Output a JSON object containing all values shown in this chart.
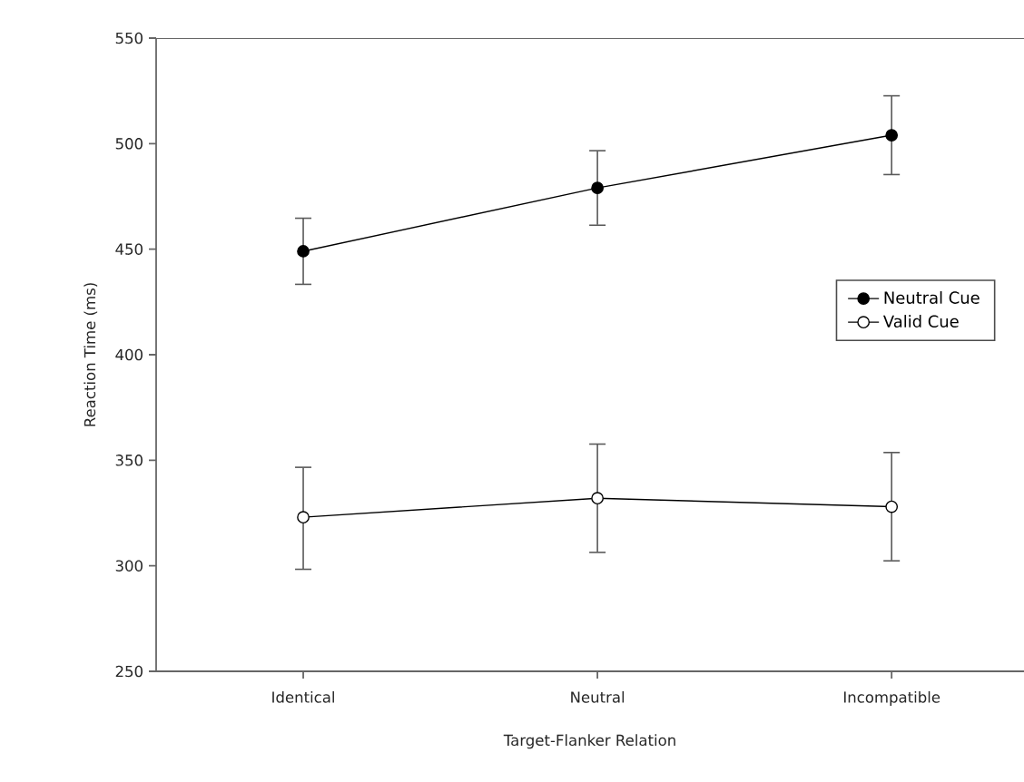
{
  "chart_data": {
    "type": "line",
    "xlabel": "Target-Flanker Relation",
    "ylabel": "Reaction Time (ms)",
    "categories": [
      "Identical",
      "Neutral",
      "Incompatible"
    ],
    "series": [
      {
        "name": "Neutral Cue",
        "color": "#000000",
        "values": [
          449,
          479,
          504
        ],
        "errors": [
          [
            433,
            465
          ],
          [
            461,
            497
          ],
          [
            485,
            523
          ]
        ]
      },
      {
        "name": "Valid Cue",
        "color": "#ffffff",
        "values": [
          323,
          332,
          328
        ],
        "errors": [
          [
            298,
            347
          ],
          [
            306,
            358
          ],
          [
            302,
            354
          ]
        ]
      }
    ],
    "ylim": [
      250,
      550
    ],
    "yticks": [
      250,
      300,
      350,
      400,
      450,
      500,
      550
    ],
    "marker": "circle",
    "line_style": "solid",
    "legend": "right",
    "grid": false
  }
}
